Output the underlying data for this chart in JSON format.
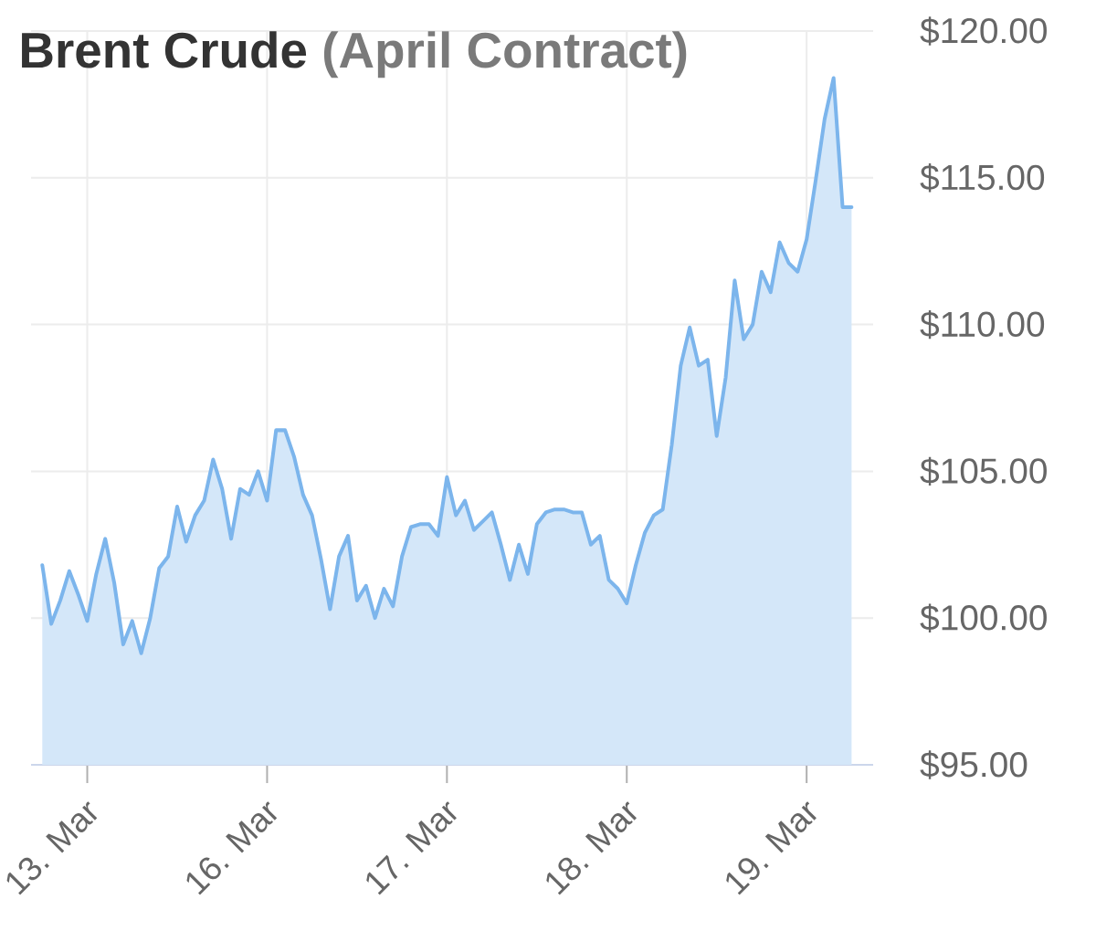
{
  "chart_data": {
    "type": "area",
    "title": "Brent Crude",
    "subtitle": "(April Contract)",
    "categories": [
      null,
      null,
      null,
      null,
      null,
      "13. Mar",
      null,
      null,
      null,
      null,
      null,
      null,
      null,
      null,
      null,
      null,
      null,
      null,
      null,
      null,
      null,
      null,
      null,
      null,
      null,
      "16. Mar",
      null,
      null,
      null,
      null,
      null,
      null,
      null,
      null,
      null,
      null,
      null,
      null,
      null,
      null,
      null,
      null,
      null,
      null,
      null,
      "17. Mar",
      null,
      null,
      null,
      null,
      null,
      null,
      null,
      null,
      null,
      null,
      null,
      null,
      null,
      null,
      null,
      null,
      null,
      null,
      null,
      "18. Mar",
      null,
      null,
      null,
      null,
      null,
      null,
      null,
      null,
      null,
      null,
      null,
      null,
      null,
      null,
      null,
      null,
      null,
      null,
      null,
      "19. Mar",
      null,
      null,
      null,
      null,
      null
    ],
    "values": [
      101.8,
      99.8,
      100.6,
      101.6,
      100.8,
      99.9,
      101.5,
      102.7,
      101.2,
      99.1,
      99.9,
      98.8,
      100.0,
      101.7,
      102.1,
      103.8,
      102.6,
      103.5,
      104.0,
      105.4,
      104.4,
      102.7,
      104.4,
      104.2,
      105.0,
      104.0,
      106.4,
      106.4,
      105.5,
      104.2,
      103.5,
      102.0,
      100.3,
      102.1,
      102.8,
      100.6,
      101.1,
      100.0,
      101.0,
      100.4,
      102.1,
      103.1,
      103.2,
      103.2,
      102.8,
      104.8,
      103.5,
      104.0,
      103.0,
      103.3,
      103.6,
      102.5,
      101.3,
      102.5,
      101.5,
      103.2,
      103.6,
      103.7,
      103.7,
      103.6,
      103.6,
      102.5,
      102.8,
      101.3,
      101.0,
      100.5,
      101.8,
      102.9,
      103.5,
      103.7,
      105.9,
      108.6,
      109.9,
      108.6,
      108.8,
      106.2,
      108.2,
      111.5,
      109.5,
      110.0,
      111.8,
      111.1,
      112.8,
      112.1,
      111.8,
      112.9,
      114.9,
      117.0,
      118.4,
      114.0,
      114.0
    ],
    "color": "#7cb5ec",
    "ylim": [
      95,
      120
    ],
    "yticks": [
      {
        "value": 95,
        "label": "$95.00"
      },
      {
        "value": 100,
        "label": "$100.00"
      },
      {
        "value": 105,
        "label": "$105.00"
      },
      {
        "value": 110,
        "label": "$110.00"
      },
      {
        "value": 115,
        "label": "$115.00"
      },
      {
        "value": 120,
        "label": "$120.00"
      }
    ],
    "grid": true
  }
}
